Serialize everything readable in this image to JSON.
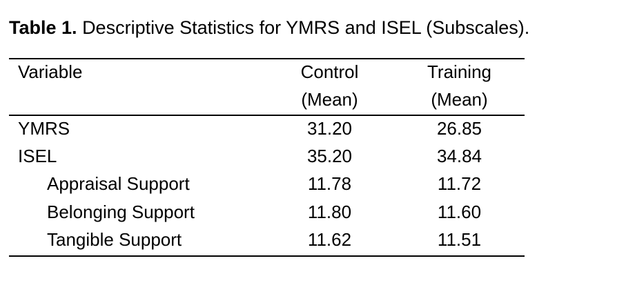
{
  "caption": {
    "label": "Table 1.",
    "title": "Descriptive Statistics for YMRS and ISEL (Subscales)."
  },
  "table": {
    "headers": {
      "variable": "Variable",
      "control_line1": "Control",
      "control_line2": "(Mean)",
      "training_line1": "Training",
      "training_line2": "(Mean)"
    },
    "rows": [
      {
        "variable": "YMRS",
        "control": "31.20",
        "training": "26.85"
      },
      {
        "variable": "ISEL",
        "control": "35.20",
        "training": "34.84"
      },
      {
        "variable": "Appraisal Support",
        "control": "11.78",
        "training": "11.72"
      },
      {
        "variable": "Belonging Support",
        "control": "11.80",
        "training": "11.60"
      },
      {
        "variable": "Tangible Support",
        "control": "11.62",
        "training": "11.51"
      }
    ]
  }
}
